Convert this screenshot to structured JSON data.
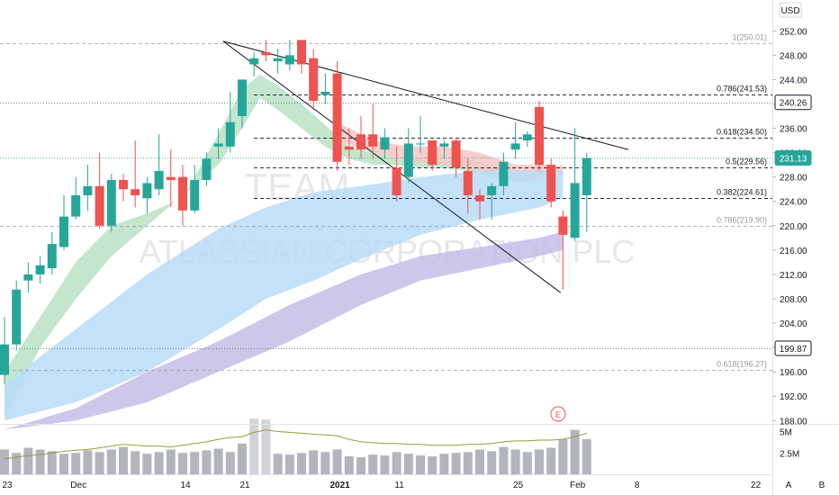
{
  "watermark": {
    "symbol": "TEAM",
    "company": "ATLASSIAN CORPORATION PLC"
  },
  "currency_badge": "USD",
  "earnings_marker": "E",
  "scale_buttons": {
    "auto": "A",
    "log": "B"
  },
  "colors": {
    "up": "#26a69a",
    "down": "#ef5350",
    "ribbon_green": "#b9e2c4",
    "ribbon_red": "#f6c6c4",
    "ribbon_blue": "#b8dcf8",
    "ribbon_purple": "#c5bde6",
    "volume": "#b2b5be",
    "volume_line": "#9c9a3b",
    "fib_line": "#5d606b",
    "trend_line": "#131722"
  },
  "chart_data": {
    "type": "candlestick",
    "title": "",
    "y_axis": {
      "range": [
        186.5,
        254.5
      ],
      "ticks": [
        "252.00",
        "248.00",
        "244.00",
        "240.00",
        "236.00",
        "232.00",
        "228.00",
        "224.00",
        "220.00",
        "216.00",
        "212.00",
        "208.00",
        "204.00",
        "200.00",
        "196.00",
        "192.00",
        "188.00"
      ],
      "tick_values": [
        252,
        248,
        244,
        240,
        236,
        232,
        228,
        224,
        220,
        216,
        212,
        208,
        204,
        200,
        196,
        192,
        188
      ]
    },
    "x_axis": {
      "labels": [
        {
          "text": "23",
          "day": 0
        },
        {
          "text": "Dec",
          "day": 6
        },
        {
          "text": "14",
          "day": 15
        },
        {
          "text": "21",
          "day": 20
        },
        {
          "text": "2021",
          "day": 28
        },
        {
          "text": "11",
          "day": 33
        },
        {
          "text": "25",
          "day": 43
        },
        {
          "text": "Feb",
          "day": 48
        },
        {
          "text": "8",
          "day": 53
        },
        {
          "text": "22",
          "day": 63
        }
      ]
    },
    "volume_axis": {
      "ticks": [
        "5M",
        "2.5M"
      ],
      "tick_values": [
        5,
        2.5
      ],
      "max": 7
    },
    "candles": [
      {
        "d": 0,
        "o": 195.5,
        "h": 205,
        "c": 200.5,
        "l": 194
      },
      {
        "d": 1,
        "o": 200.5,
        "h": 211,
        "c": 209.5,
        "l": 199.5
      },
      {
        "d": 2,
        "o": 211,
        "h": 214,
        "c": 212,
        "l": 209
      },
      {
        "d": 3,
        "o": 212,
        "h": 215,
        "c": 213.5,
        "l": 210.5
      },
      {
        "d": 4,
        "o": 213,
        "h": 219,
        "c": 217,
        "l": 212
      },
      {
        "d": 5,
        "o": 216.5,
        "h": 225,
        "c": 221.5,
        "l": 216
      },
      {
        "d": 6,
        "o": 221.5,
        "h": 228,
        "c": 225,
        "l": 221
      },
      {
        "d": 7,
        "o": 225,
        "h": 230,
        "c": 226.5,
        "l": 222.5
      },
      {
        "d": 8,
        "o": 226.5,
        "h": 232,
        "c": 220,
        "l": 219.5
      },
      {
        "d": 9,
        "o": 220,
        "h": 228.5,
        "c": 227.5,
        "l": 219
      },
      {
        "d": 10,
        "o": 227.5,
        "h": 228.5,
        "c": 226,
        "l": 224
      },
      {
        "d": 11,
        "o": 226,
        "h": 234,
        "c": 225,
        "l": 223
      },
      {
        "d": 12,
        "o": 224.5,
        "h": 228,
        "c": 227,
        "l": 222
      },
      {
        "d": 13,
        "o": 226,
        "h": 235,
        "c": 229,
        "l": 225
      },
      {
        "d": 14,
        "o": 228,
        "h": 232.5,
        "c": 227.5,
        "l": 223
      },
      {
        "d": 15,
        "o": 228,
        "h": 230,
        "c": 222.5,
        "l": 220
      },
      {
        "d": 16,
        "o": 222.5,
        "h": 230,
        "c": 227.5,
        "l": 222
      },
      {
        "d": 17,
        "o": 227.5,
        "h": 232,
        "c": 231,
        "l": 226.5
      },
      {
        "d": 18,
        "o": 233,
        "h": 236,
        "c": 233.5,
        "l": 231
      },
      {
        "d": 19,
        "o": 233,
        "h": 242,
        "c": 237,
        "l": 232
      },
      {
        "d": 20,
        "o": 238,
        "h": 244,
        "c": 244,
        "l": 236
      },
      {
        "d": 21,
        "o": 246.5,
        "h": 248.5,
        "c": 247.5,
        "l": 244.5
      },
      {
        "d": 22,
        "o": 248.5,
        "h": 250.5,
        "c": 248,
        "l": 247
      },
      {
        "d": 23,
        "o": 247,
        "h": 249,
        "c": 247.5,
        "l": 245
      },
      {
        "d": 24,
        "o": 246.5,
        "h": 250.5,
        "c": 248,
        "l": 245.5
      },
      {
        "d": 25,
        "o": 250.5,
        "h": 250.5,
        "c": 246.5,
        "l": 245
      },
      {
        "d": 26,
        "o": 247.5,
        "h": 249,
        "c": 240.5,
        "l": 239
      },
      {
        "d": 27,
        "o": 241.5,
        "h": 245,
        "c": 242,
        "l": 240
      },
      {
        "d": 28,
        "o": 245,
        "h": 247,
        "c": 230.5,
        "l": 229
      },
      {
        "d": 29,
        "o": 233,
        "h": 236,
        "c": 232.5,
        "l": 230
      },
      {
        "d": 30,
        "o": 235,
        "h": 238,
        "c": 232.5,
        "l": 231
      },
      {
        "d": 31,
        "o": 235,
        "h": 240,
        "c": 233,
        "l": 231
      },
      {
        "d": 32,
        "o": 232.5,
        "h": 236,
        "c": 234.5,
        "l": 231
      },
      {
        "d": 33,
        "o": 229.5,
        "h": 233,
        "c": 225,
        "l": 224
      },
      {
        "d": 34,
        "o": 228,
        "h": 236,
        "c": 233.5,
        "l": 227
      },
      {
        "d": 35,
        "o": 233.5,
        "h": 238,
        "c": 233.5,
        "l": 232
      },
      {
        "d": 36,
        "o": 234,
        "h": 234,
        "c": 230,
        "l": 229
      },
      {
        "d": 37,
        "o": 233,
        "h": 234,
        "c": 233.5,
        "l": 231
      },
      {
        "d": 38,
        "o": 234,
        "h": 234.5,
        "c": 229.5,
        "l": 228
      },
      {
        "d": 39,
        "o": 229,
        "h": 231,
        "c": 225,
        "l": 222
      },
      {
        "d": 40,
        "o": 225,
        "h": 226,
        "c": 224,
        "l": 221
      },
      {
        "d": 41,
        "o": 225,
        "h": 227,
        "c": 226.5,
        "l": 221
      },
      {
        "d": 42,
        "o": 226.5,
        "h": 232,
        "c": 230.5,
        "l": 225
      },
      {
        "d": 43,
        "o": 232.5,
        "h": 237,
        "c": 233.5,
        "l": 231
      },
      {
        "d": 44,
        "o": 234,
        "h": 235.5,
        "c": 235,
        "l": 233
      },
      {
        "d": 45,
        "o": 239.5,
        "h": 240.5,
        "c": 230,
        "l": 229
      },
      {
        "d": 46,
        "o": 230,
        "h": 231,
        "c": 224,
        "l": 223
      },
      {
        "d": 47,
        "o": 221.5,
        "h": 222.5,
        "c": 218.5,
        "l": 209.5
      },
      {
        "d": 48,
        "o": 218,
        "h": 236,
        "c": 227,
        "l": 217.5
      },
      {
        "d": 49,
        "o": 225,
        "h": 232,
        "c": 231.1,
        "l": 219
      }
    ],
    "volume": [
      2.9,
      2.5,
      3.1,
      2.9,
      2.7,
      2.4,
      2.5,
      2.8,
      2.6,
      2.9,
      3.2,
      2.7,
      2.4,
      2.6,
      2.9,
      2.5,
      2.6,
      2.8,
      3.0,
      2.6,
      3.6,
      6.5,
      6.4,
      2.4,
      2.3,
      2.5,
      2.8,
      2.6,
      2.9,
      2.1,
      2.0,
      2.3,
      2.2,
      2.6,
      2.4,
      2.2,
      2.1,
      2.4,
      2.5,
      2.6,
      2.9,
      2.7,
      3.2,
      2.9,
      2.6,
      2.9,
      3.1,
      4.1,
      5.2,
      4.1
    ],
    "volume_ma": [
      1.8,
      2.0,
      2.2,
      2.3,
      2.5,
      2.7,
      2.8,
      2.9,
      3.1,
      3.3,
      3.5,
      3.4,
      3.3,
      3.3,
      3.2,
      3.4,
      3.6,
      3.8,
      4.1,
      4.3,
      4.4,
      4.9,
      5.2,
      5.0,
      4.9,
      4.8,
      4.7,
      4.6,
      4.5,
      4.1,
      3.8,
      3.7,
      3.6,
      3.6,
      3.5,
      3.5,
      3.4,
      3.4,
      3.4,
      3.5,
      3.5,
      3.6,
      3.8,
      3.9,
      3.9,
      4.0,
      4.0,
      4.1,
      4.4,
      4.8
    ],
    "fibonacci": [
      {
        "label": "1(250.01)",
        "value": 250.01,
        "muted": true
      },
      {
        "label": "0.786(241.53)",
        "value": 241.53,
        "muted": false
      },
      {
        "label": "0.618(234.50)",
        "value": 234.5,
        "muted": false
      },
      {
        "label": "0.5(229.56)",
        "value": 229.56,
        "muted": false
      },
      {
        "label": "0.382(224.61)",
        "value": 224.61,
        "muted": false
      },
      {
        "label": "0.786(219.90)",
        "value": 219.9,
        "muted": true
      },
      {
        "label": "0.618(196.27)",
        "value": 196.27,
        "muted": true
      }
    ],
    "price_tags": [
      {
        "text": "240.26",
        "value": 240.26,
        "style": "outline"
      },
      {
        "text": "231.13",
        "value": 231.13,
        "style": "green"
      },
      {
        "text": "199.87",
        "value": 199.87,
        "style": "outline"
      }
    ],
    "horizontal_lines": [
      {
        "value": 240.26,
        "style": "dotted"
      },
      {
        "value": 231.13,
        "style": "dotted-green"
      },
      {
        "value": 199.87,
        "style": "dotted"
      }
    ],
    "trendlines": [
      {
        "from": [
          18.4,
          250.3
        ],
        "to": [
          52.5,
          232.5
        ]
      },
      {
        "from": [
          18.4,
          250.3
        ],
        "to": [
          46.8,
          209
        ]
      }
    ],
    "ribbons": [
      {
        "name": "",
        "color_key": "ribbon_green",
        "upper": [
          [
            0,
            196
          ],
          [
            3,
            205
          ],
          [
            6,
            214
          ],
          [
            9,
            220
          ],
          [
            12,
            222
          ],
          [
            15,
            224.5
          ],
          [
            18,
            235
          ],
          [
            20,
            242.5
          ],
          [
            21.5,
            244.8
          ],
          [
            23,
            243
          ],
          [
            25,
            240
          ],
          [
            27,
            236.5
          ],
          [
            29,
            233
          ],
          [
            31,
            232
          ],
          [
            33,
            231
          ],
          [
            35,
            231
          ],
          [
            37,
            231
          ],
          [
            39,
            231
          ],
          [
            41,
            230
          ],
          [
            43,
            229
          ],
          [
            45,
            229
          ],
          [
            47,
            230
          ]
        ],
        "lower": [
          [
            47,
            229.5
          ],
          [
            45,
            228
          ],
          [
            43,
            227
          ],
          [
            41,
            228
          ],
          [
            39,
            229
          ],
          [
            37,
            229.5
          ],
          [
            35,
            229.5
          ],
          [
            33,
            230
          ],
          [
            31,
            230
          ],
          [
            29,
            231
          ],
          [
            27,
            233
          ],
          [
            25,
            236
          ],
          [
            23,
            239
          ],
          [
            21.5,
            241
          ],
          [
            20,
            236
          ],
          [
            18,
            230
          ],
          [
            15,
            225
          ],
          [
            12,
            220
          ],
          [
            9,
            215
          ],
          [
            6,
            208
          ],
          [
            3,
            200
          ],
          [
            0,
            188.5
          ]
        ]
      },
      {
        "name": "",
        "color_key": "ribbon_red",
        "upper": [
          [
            28,
            237
          ],
          [
            31,
            234
          ],
          [
            34,
            233
          ],
          [
            37,
            233
          ],
          [
            40,
            232
          ],
          [
            43,
            230
          ],
          [
            46,
            230
          ],
          [
            47,
            229.5
          ]
        ],
        "lower": [
          [
            47,
            228.5
          ],
          [
            46,
            228
          ],
          [
            43,
            227
          ],
          [
            40,
            229
          ],
          [
            37,
            230
          ],
          [
            34,
            230.5
          ],
          [
            31,
            232
          ],
          [
            28,
            234
          ]
        ]
      },
      {
        "name": "",
        "color_key": "ribbon_blue",
        "upper": [
          [
            0,
            194
          ],
          [
            6,
            203
          ],
          [
            12,
            212
          ],
          [
            18,
            219.5
          ],
          [
            22,
            223
          ],
          [
            26,
            225.5
          ],
          [
            30,
            226.5
          ],
          [
            35,
            228
          ],
          [
            40,
            229
          ],
          [
            45,
            229
          ],
          [
            47,
            229
          ]
        ],
        "lower": [
          [
            47,
            224.5
          ],
          [
            45,
            223
          ],
          [
            40,
            221
          ],
          [
            35,
            218.5
          ],
          [
            30,
            214.5
          ],
          [
            26,
            211
          ],
          [
            22,
            208
          ],
          [
            18,
            203
          ],
          [
            12,
            196
          ],
          [
            6,
            191
          ],
          [
            0,
            188
          ]
        ]
      },
      {
        "name": "",
        "color_key": "ribbon_purple",
        "upper": [
          [
            0,
            186.5
          ],
          [
            6,
            190
          ],
          [
            12,
            196
          ],
          [
            18,
            201
          ],
          [
            24,
            207
          ],
          [
            30,
            212
          ],
          [
            35,
            215
          ],
          [
            40,
            216.5
          ],
          [
            45,
            218
          ],
          [
            47,
            219
          ]
        ],
        "lower": [
          [
            47,
            216
          ],
          [
            45,
            215
          ],
          [
            40,
            213
          ],
          [
            35,
            211
          ],
          [
            30,
            207
          ],
          [
            24,
            201
          ],
          [
            18,
            196
          ],
          [
            12,
            191
          ],
          [
            6,
            188
          ],
          [
            0,
            186.5
          ]
        ]
      }
    ]
  }
}
